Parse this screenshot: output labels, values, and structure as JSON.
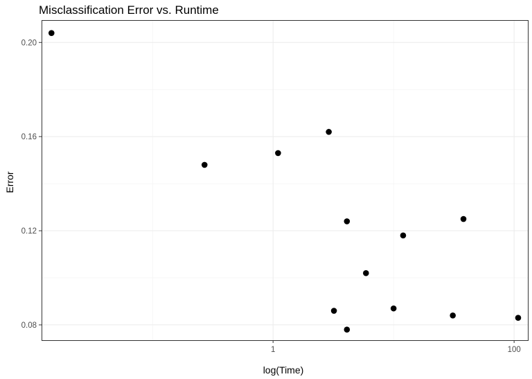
{
  "chart_data": {
    "type": "scatter",
    "title": "Misclassification Error vs. Runtime",
    "xlabel": "log(Time)",
    "ylabel": "Error",
    "x_scale": "log10",
    "xlim": [
      0.012,
      130
    ],
    "ylim": [
      0.0735,
      0.2095
    ],
    "x_ticks": [
      {
        "value": 1,
        "label": "1"
      },
      {
        "value": 100,
        "label": "100"
      }
    ],
    "x_minor_gridlines": [
      0.1,
      10
    ],
    "y_ticks": [
      {
        "value": 0.08,
        "label": "0.08"
      },
      {
        "value": 0.12,
        "label": "0.12"
      },
      {
        "value": 0.16,
        "label": "0.16"
      },
      {
        "value": 0.2,
        "label": "0.20"
      }
    ],
    "y_minor_gridlines": [
      0.1,
      0.14,
      0.18
    ],
    "grid": true,
    "points": [
      {
        "x": 0.0145,
        "y": 0.204
      },
      {
        "x": 0.27,
        "y": 0.148
      },
      {
        "x": 1.1,
        "y": 0.153
      },
      {
        "x": 2.9,
        "y": 0.162
      },
      {
        "x": 3.2,
        "y": 0.086
      },
      {
        "x": 4.1,
        "y": 0.124
      },
      {
        "x": 4.1,
        "y": 0.078
      },
      {
        "x": 5.9,
        "y": 0.102
      },
      {
        "x": 10.0,
        "y": 0.087
      },
      {
        "x": 12.0,
        "y": 0.118
      },
      {
        "x": 31.0,
        "y": 0.084
      },
      {
        "x": 38.0,
        "y": 0.125
      },
      {
        "x": 108.0,
        "y": 0.083
      }
    ],
    "point_color": "#000000"
  }
}
